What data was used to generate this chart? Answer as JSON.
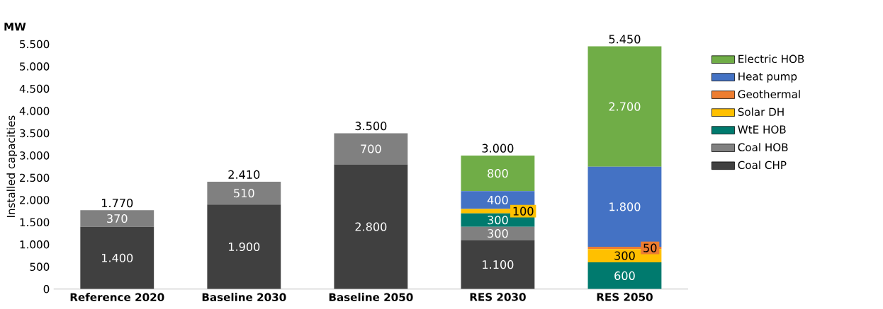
{
  "chart_data": {
    "type": "bar",
    "stacked": true,
    "ylabel": "Installed capacities",
    "annotations": [
      "MW"
    ],
    "categories": [
      "Reference 2020",
      "Baseline 2030",
      "Baseline 2050",
      "RES 2030",
      "RES 2050"
    ],
    "ylim": [
      0,
      5500
    ],
    "yticks": [
      0,
      500,
      {
        "value": 1000,
        "label": "1.000"
      },
      {
        "value": 1500,
        "label": "1.500"
      },
      {
        "value": 2000,
        "label": "2.000"
      },
      {
        "value": 2500,
        "label": "2.500"
      },
      {
        "value": 3000,
        "label": "3.000"
      },
      {
        "value": 3500,
        "label": "3.500"
      },
      {
        "value": 4000,
        "label": "4.000"
      },
      {
        "value": 4500,
        "label": "4.500"
      },
      {
        "value": 5000,
        "label": "5.000"
      },
      {
        "value": 5500,
        "label": "5.500"
      }
    ],
    "legend": "right",
    "grid": false,
    "series": [
      {
        "name": "Coal CHP",
        "color": "#404040",
        "values": [
          1400,
          1900,
          2800,
          1100,
          0
        ],
        "value_labels": [
          "1.400",
          "1.900",
          "2.800",
          "1.100",
          null
        ]
      },
      {
        "name": "Coal HOB",
        "color": "#808080",
        "values": [
          370,
          510,
          700,
          300,
          0
        ],
        "value_labels": [
          "370",
          "510",
          "700",
          "300",
          null
        ]
      },
      {
        "name": "WtE HOB",
        "color": "#007a6e",
        "values": [
          0,
          0,
          0,
          300,
          600
        ],
        "value_labels": [
          null,
          null,
          null,
          "300",
          "600"
        ]
      },
      {
        "name": "Solar DH",
        "color": "#ffc000",
        "values": [
          0,
          0,
          0,
          100,
          300
        ],
        "value_labels": [
          null,
          null,
          null,
          "100",
          "300"
        ]
      },
      {
        "name": "Geothermal",
        "color": "#ed7d31",
        "values": [
          0,
          0,
          0,
          0,
          50
        ],
        "value_labels": [
          null,
          null,
          null,
          null,
          "50"
        ]
      },
      {
        "name": "Heat pump",
        "color": "#4472c4",
        "values": [
          0,
          0,
          0,
          400,
          1800
        ],
        "value_labels": [
          null,
          null,
          null,
          "400",
          "1.800"
        ]
      },
      {
        "name": "Electric HOB",
        "color": "#70ad47",
        "values": [
          0,
          0,
          0,
          800,
          2700
        ],
        "value_labels": [
          null,
          null,
          null,
          "800",
          "2.700"
        ]
      }
    ],
    "totals": [
      "1.770",
      "2.410",
      "3.500",
      "3.000",
      "5.450"
    ]
  }
}
